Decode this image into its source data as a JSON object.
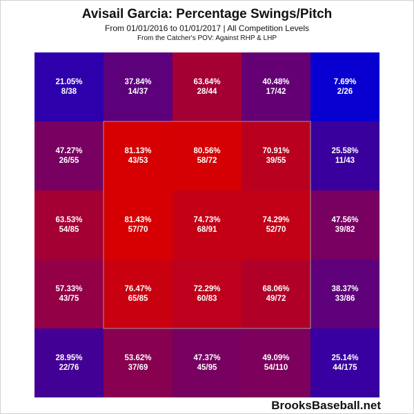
{
  "title": "Avisail Garcia: Percentage Swings/Pitch",
  "subtitle": "From 01/01/2016 to 01/01/2017 | All Competition Levels",
  "subtitle2": "From the Catcher's POV:  Against RHP & LHP",
  "branding": "BrooksBaseball.net",
  "chart_data": {
    "type": "heatmap",
    "title": "Avisail Garcia: Percentage Swings/Pitch",
    "rows": 5,
    "cols": 5,
    "strike_zone": {
      "rows": [
        1,
        3
      ],
      "cols": [
        1,
        3
      ]
    },
    "color_scale": {
      "low": "#0000d8",
      "high": "#d80000"
    },
    "cells": [
      [
        {
          "pct": "21.05%",
          "value": 21.05,
          "count": "8/38"
        },
        {
          "pct": "37.84%",
          "value": 37.84,
          "count": "14/37"
        },
        {
          "pct": "63.64%",
          "value": 63.64,
          "count": "28/44"
        },
        {
          "pct": "40.48%",
          "value": 40.48,
          "count": "17/42"
        },
        {
          "pct": "7.69%",
          "value": 7.69,
          "count": "2/26"
        }
      ],
      [
        {
          "pct": "47.27%",
          "value": 47.27,
          "count": "26/55"
        },
        {
          "pct": "81.13%",
          "value": 81.13,
          "count": "43/53"
        },
        {
          "pct": "80.56%",
          "value": 80.56,
          "count": "58/72"
        },
        {
          "pct": "70.91%",
          "value": 70.91,
          "count": "39/55"
        },
        {
          "pct": "25.58%",
          "value": 25.58,
          "count": "11/43"
        }
      ],
      [
        {
          "pct": "63.53%",
          "value": 63.53,
          "count": "54/85"
        },
        {
          "pct": "81.43%",
          "value": 81.43,
          "count": "57/70"
        },
        {
          "pct": "74.73%",
          "value": 74.73,
          "count": "68/91"
        },
        {
          "pct": "74.29%",
          "value": 74.29,
          "count": "52/70"
        },
        {
          "pct": "47.56%",
          "value": 47.56,
          "count": "39/82"
        }
      ],
      [
        {
          "pct": "57.33%",
          "value": 57.33,
          "count": "43/75"
        },
        {
          "pct": "76.47%",
          "value": 76.47,
          "count": "65/85"
        },
        {
          "pct": "72.29%",
          "value": 72.29,
          "count": "60/83"
        },
        {
          "pct": "68.06%",
          "value": 68.06,
          "count": "49/72"
        },
        {
          "pct": "38.37%",
          "value": 38.37,
          "count": "33/86"
        }
      ],
      [
        {
          "pct": "28.95%",
          "value": 28.95,
          "count": "22/76"
        },
        {
          "pct": "53.62%",
          "value": 53.62,
          "count": "37/69"
        },
        {
          "pct": "47.37%",
          "value": 47.37,
          "count": "45/95"
        },
        {
          "pct": "49.09%",
          "value": 49.09,
          "count": "54/110"
        },
        {
          "pct": "25.14%",
          "value": 25.14,
          "count": "44/175"
        }
      ]
    ]
  }
}
